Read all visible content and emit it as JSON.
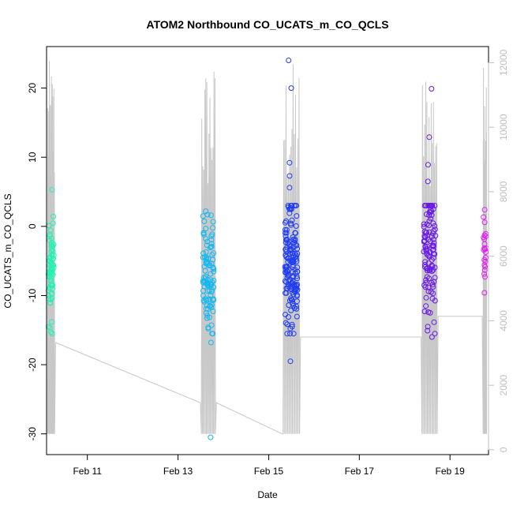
{
  "chart_data": {
    "type": "scatter",
    "title": "ATOM2 Northbound CO_UCATS_m_CO_QCLS",
    "xlabel": "Date",
    "ylabel": "CO_UCATS_m_CO_QCLS",
    "ylim": [
      -33,
      26
    ],
    "xlim": [
      10.1,
      19.85
    ],
    "y2lim": [
      -150,
      12500
    ],
    "x_ticks": [
      {
        "value": 11,
        "label": "Feb 11"
      },
      {
        "value": 13,
        "label": "Feb 13"
      },
      {
        "value": 15,
        "label": "Feb 15"
      },
      {
        "value": 17,
        "label": "Feb 17"
      },
      {
        "value": 19,
        "label": "Feb 19"
      }
    ],
    "y_ticks": [
      20,
      10,
      0,
      -10,
      -20,
      -30
    ],
    "y2_ticks": [
      0,
      2000,
      4000,
      6000,
      8000,
      10000,
      12000
    ],
    "colors": {
      "axis": "#000000",
      "altitude_line": "#c8c8c8",
      "right_axis": "#bfbfbf",
      "flight1": "#22f2b2",
      "flight2": "#15b8f0",
      "flight3": "#1f3cf5",
      "flight4": "#6a18ea",
      "flight5": "#dd22ee"
    },
    "flights": [
      {
        "name": "flight1",
        "center": 10.2,
        "spread": 0.06,
        "ymean": -6,
        "ysd": 4.2,
        "count": 70,
        "extremes": [
          5.3,
          -15.3
        ]
      },
      {
        "name": "flight2",
        "center": 13.67,
        "spread": 0.12,
        "ymean": -7,
        "ysd": 4,
        "count": 100,
        "extremes": [
          2.2,
          -12.9,
          -14.8,
          -16.8,
          -30.5
        ]
      },
      {
        "name": "flight3",
        "center": 15.5,
        "spread": 0.14,
        "ymean": -5,
        "ysd": 4.5,
        "count": 160,
        "extremes": [
          24,
          20,
          9.2,
          7.3,
          5.6,
          -19.5,
          -14.2
        ]
      },
      {
        "name": "flight4",
        "center": 18.55,
        "spread": 0.13,
        "ymean": -4,
        "ysd": 4.6,
        "count": 110,
        "extremes": [
          19.9,
          12.9,
          8.9,
          6.5,
          -16,
          -14.5
        ]
      },
      {
        "name": "flight5",
        "center": 19.77,
        "spread": 0.03,
        "ymean": -3,
        "ysd": 3.5,
        "count": 22,
        "extremes": [
          2.4,
          -9.6
        ]
      }
    ]
  }
}
